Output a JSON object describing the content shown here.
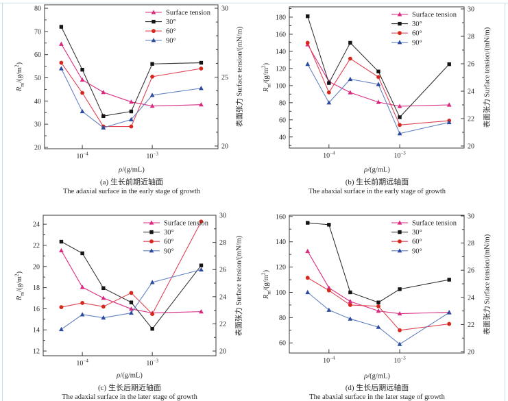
{
  "page": {
    "background": "#ffffff",
    "border_color": "#c8e0ec"
  },
  "axis_labels": {
    "left": {
      "symbol": "R",
      "sub": "m",
      "unit_open": "/(g/m",
      "sup": "2",
      "close": ")"
    },
    "right": "表面张力 Surface tension/(mN/m)",
    "x": {
      "symbol": "ρ",
      "unit": "/(g/mL)"
    }
  },
  "figure": {
    "x_tick_labels": [
      {
        "base": "10",
        "exp": "−4"
      },
      {
        "base": "10",
        "exp": "−3"
      }
    ]
  },
  "chart_data": [
    {
      "id": "a",
      "type": "line",
      "title_zh": "(a) 生长前期近轴面",
      "title_en": "The adaxial surface in the early stage of growth",
      "xlabel": "ρ/(g/mL)",
      "x_scale": "log",
      "x_g_per_mL": [
        5e-05,
        0.0001,
        0.0002,
        0.0005,
        0.001,
        0.005
      ],
      "x_major_ticks": [
        0.0001,
        0.001
      ],
      "x_range_log10": [
        -4.54,
        -2.06
      ],
      "left_axis": {
        "label": "Rm/(g/m2)",
        "ticks": [
          20,
          30,
          40,
          50,
          60,
          70,
          80
        ],
        "minor_step": 5,
        "range": [
          19.4,
          81.5
        ]
      },
      "right_axis": {
        "label": "表面张力 Surface tension/(mN/m)",
        "ticks": [
          20,
          25,
          30
        ],
        "minor_step": 1,
        "range": [
          19.8,
          30.25
        ]
      },
      "series": [
        {
          "name": "Surface tension",
          "axis": "right",
          "marker": "triangle",
          "color_line": "#d82a80",
          "color_marker": "#d82a80",
          "values": [
            27.4,
            24.8,
            23.9,
            23.2,
            22.9,
            23.0
          ]
        },
        {
          "name": "30°",
          "axis": "left",
          "marker": "square",
          "color_line": "#333333",
          "color_marker": "#141414",
          "values": [
            72,
            53.5,
            33.5,
            35.5,
            56,
            56.5
          ]
        },
        {
          "name": "60°",
          "axis": "left",
          "marker": "circle",
          "color_line": "#de4150",
          "color_marker": "#d7281d",
          "values": [
            56.5,
            43.5,
            29,
            29,
            50.5,
            54
          ]
        },
        {
          "name": "90°",
          "axis": "left",
          "marker": "triangle",
          "color_line": "#6282c2",
          "color_marker": "#2c4a9e",
          "values": [
            54,
            35.5,
            28.5,
            32,
            42.5,
            45.5
          ]
        }
      ]
    },
    {
      "id": "b",
      "type": "line",
      "title_zh": "(b) 生长前期远轴面",
      "title_en": "The abaxial surface in the early stage of growth",
      "xlabel": "ρ/(g/mL)",
      "x_scale": "log",
      "x_g_per_mL": [
        5e-05,
        0.0001,
        0.0002,
        0.0005,
        0.001,
        0.005
      ],
      "x_major_ticks": [
        0.0001,
        0.001
      ],
      "x_range_log10": [
        -4.56,
        -2.09
      ],
      "left_axis": {
        "label": "Rm/(g/m2)",
        "ticks": [
          40,
          60,
          80,
          100,
          120,
          140,
          160,
          180
        ],
        "minor_step": 10,
        "range": [
          27,
          192
        ]
      },
      "right_axis": {
        "label": "表面张力 Surface tension/(mN/m)",
        "ticks": [
          20,
          22,
          24,
          26,
          28,
          30
        ],
        "minor_step": 1,
        "range": [
          19.85,
          30.15
        ]
      },
      "series": [
        {
          "name": "Surface tension",
          "axis": "right",
          "marker": "triangle",
          "color_line": "#d82a80",
          "color_marker": "#d82a80",
          "values": [
            27.4,
            24.7,
            23.9,
            23.2,
            22.9,
            23.0
          ]
        },
        {
          "name": "30°",
          "axis": "left",
          "marker": "square",
          "color_line": "#333333",
          "color_marker": "#141414",
          "values": [
            181,
            103,
            150,
            116.5,
            63,
            125
          ]
        },
        {
          "name": "60°",
          "axis": "left",
          "marker": "circle",
          "color_line": "#de4150",
          "color_marker": "#d7281d",
          "values": [
            150,
            92,
            131.5,
            110,
            54,
            59
          ]
        },
        {
          "name": "90°",
          "axis": "left",
          "marker": "triangle",
          "color_line": "#6282c2",
          "color_marker": "#2c4a9e",
          "values": [
            125,
            80,
            107.5,
            101.5,
            44,
            57
          ]
        }
      ]
    },
    {
      "id": "c",
      "type": "line",
      "title_zh": "(c) 生长后期近轴面",
      "title_en": "The adaxial surface in the later stage of growth",
      "xlabel": "ρ/(g/mL)",
      "x_scale": "log",
      "x_g_per_mL": [
        5e-05,
        0.0001,
        0.0002,
        0.0005,
        0.001,
        0.005
      ],
      "x_major_ticks": [
        0.0001,
        0.001
      ],
      "x_range_log10": [
        -4.56,
        -2.09
      ],
      "left_axis": {
        "label": "Rm/(g/m2)",
        "ticks": [
          12,
          14,
          16,
          18,
          20,
          22,
          24
        ],
        "minor_step": 1,
        "range": [
          11.55,
          24.85
        ]
      },
      "right_axis": {
        "label": "表面张力 Surface tension/(mN/m)",
        "ticks": [
          20,
          22,
          24,
          26,
          28,
          30
        ],
        "minor_step": 1,
        "range": [
          19.65,
          30.0
        ]
      },
      "series": [
        {
          "name": "Surface tension",
          "axis": "right",
          "marker": "triangle",
          "color_line": "#d82a80",
          "color_marker": "#d82a80",
          "values": [
            27.4,
            24.7,
            23.9,
            23.1,
            22.8,
            22.9
          ]
        },
        {
          "name": "30°",
          "axis": "left",
          "marker": "square",
          "color_line": "#333333",
          "color_marker": "#141414",
          "values": [
            22.35,
            21.25,
            17.95,
            16.6,
            14.1,
            20.1
          ]
        },
        {
          "name": "60°",
          "axis": "left",
          "marker": "circle",
          "color_line": "#de4150",
          "color_marker": "#d7281d",
          "values": [
            16.15,
            16.55,
            16.2,
            17.5,
            15.5,
            24.25
          ]
        },
        {
          "name": "90°",
          "axis": "left",
          "marker": "triangle",
          "color_line": "#6282c2",
          "color_marker": "#2c4a9e",
          "values": [
            14.05,
            15.45,
            15.15,
            15.6,
            18.5,
            19.7
          ]
        }
      ]
    },
    {
      "id": "d",
      "type": "line",
      "title_zh": "(d) 生长后期远轴面",
      "title_en": "The abaxial surface in the later stage of growth",
      "xlabel": "ρ/(g/mL)",
      "x_scale": "log",
      "x_g_per_mL": [
        5e-05,
        0.0001,
        0.0002,
        0.0005,
        0.001,
        0.005
      ],
      "x_major_ticks": [
        0.0001,
        0.001
      ],
      "x_range_log10": [
        -4.56,
        -2.09
      ],
      "left_axis": {
        "label": "Rm/(g/m2)",
        "ticks": [
          60,
          80,
          100,
          120,
          140,
          160
        ],
        "minor_step": 10,
        "range": [
          52,
          161
        ]
      },
      "right_axis": {
        "label": "表面张力 Surface tension/(mN/m)",
        "ticks": [
          20,
          22,
          24,
          26,
          28,
          30
        ],
        "minor_step": 1,
        "range": [
          19.9,
          30.05
        ]
      },
      "series": [
        {
          "name": "Surface tension",
          "axis": "right",
          "marker": "triangle",
          "color_line": "#d82a80",
          "color_marker": "#d82a80",
          "values": [
            27.4,
            24.7,
            23.7,
            23.0,
            22.8,
            22.9
          ]
        },
        {
          "name": "30°",
          "axis": "left",
          "marker": "square",
          "color_line": "#333333",
          "color_marker": "#141414",
          "values": [
            155,
            153.5,
            100,
            92,
            102.5,
            110
          ]
        },
        {
          "name": "60°",
          "axis": "left",
          "marker": "circle",
          "color_line": "#de4150",
          "color_marker": "#d7281d",
          "values": [
            111.5,
            101.5,
            90,
            89,
            70,
            75
          ]
        },
        {
          "name": "90°",
          "axis": "left",
          "marker": "triangle",
          "color_line": "#6282c2",
          "color_marker": "#2c4a9e",
          "values": [
            100,
            86,
            79,
            72.5,
            59,
            84
          ]
        }
      ]
    }
  ]
}
